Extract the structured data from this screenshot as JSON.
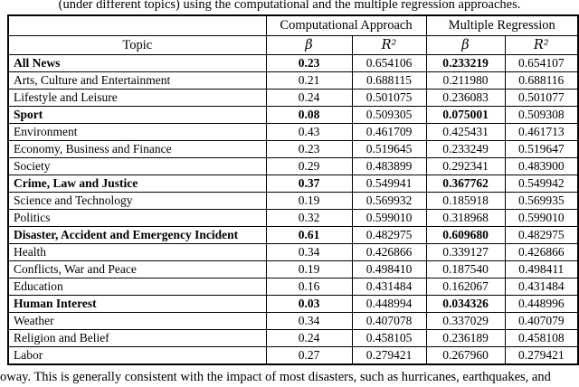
{
  "caption_top": "(under different topics) using the computational and the multiple regression approaches.",
  "table": {
    "group_headers": [
      "Computational Approach",
      "Multiple Regression"
    ],
    "col_headers": {
      "topic": "Topic",
      "beta": "β",
      "r2": "R²"
    },
    "rows": [
      {
        "topic": "All News",
        "bold": true,
        "ca_beta": "0.23",
        "ca_r2": "0.654106",
        "mr_beta": "0.233219",
        "mr_r2": "0.654107"
      },
      {
        "topic": "Arts, Culture and Entertainment",
        "bold": false,
        "ca_beta": "0.21",
        "ca_r2": "0.688115",
        "mr_beta": "0.211980",
        "mr_r2": "0.688116"
      },
      {
        "topic": "Lifestyle and Leisure",
        "bold": false,
        "ca_beta": "0.24",
        "ca_r2": "0.501075",
        "mr_beta": "0.236083",
        "mr_r2": "0.501077"
      },
      {
        "topic": "Sport",
        "bold": true,
        "ca_beta": "0.08",
        "ca_r2": "0.509305",
        "mr_beta": "0.075001",
        "mr_r2": "0.509308"
      },
      {
        "topic": "Environment",
        "bold": false,
        "ca_beta": "0.43",
        "ca_r2": "0.461709",
        "mr_beta": "0.425431",
        "mr_r2": "0.461713"
      },
      {
        "topic": "Economy, Business and Finance",
        "bold": false,
        "ca_beta": "0.23",
        "ca_r2": "0.519645",
        "mr_beta": "0.233249",
        "mr_r2": "0.519647"
      },
      {
        "topic": "Society",
        "bold": false,
        "ca_beta": "0.29",
        "ca_r2": "0.483899",
        "mr_beta": "0.292341",
        "mr_r2": "0.483900"
      },
      {
        "topic": "Crime, Law and Justice",
        "bold": true,
        "ca_beta": "0.37",
        "ca_r2": "0.549941",
        "mr_beta": "0.367762",
        "mr_r2": "0.549942"
      },
      {
        "topic": "Science and Technology",
        "bold": false,
        "ca_beta": "0.19",
        "ca_r2": "0.569932",
        "mr_beta": "0.185918",
        "mr_r2": "0.569935"
      },
      {
        "topic": "Politics",
        "bold": false,
        "ca_beta": "0.32",
        "ca_r2": "0.599010",
        "mr_beta": "0.318968",
        "mr_r2": "0.599010"
      },
      {
        "topic": "Disaster, Accident and Emergency Incident",
        "bold": true,
        "ca_beta": "0.61",
        "ca_r2": "0.482975",
        "mr_beta": "0.609680",
        "mr_r2": "0.482975"
      },
      {
        "topic": "Health",
        "bold": false,
        "ca_beta": "0.34",
        "ca_r2": "0.426866",
        "mr_beta": "0.339127",
        "mr_r2": "0.426866"
      },
      {
        "topic": "Conflicts, War and Peace",
        "bold": false,
        "ca_beta": "0.19",
        "ca_r2": "0.498410",
        "mr_beta": "0.187540",
        "mr_r2": "0.498411"
      },
      {
        "topic": "Education",
        "bold": false,
        "ca_beta": "0.16",
        "ca_r2": "0.431484",
        "mr_beta": "0.162067",
        "mr_r2": "0.431484"
      },
      {
        "topic": "Human Interest",
        "bold": true,
        "ca_beta": "0.03",
        "ca_r2": "0.448994",
        "mr_beta": "0.034326",
        "mr_r2": "0.448996"
      },
      {
        "topic": "Weather",
        "bold": false,
        "ca_beta": "0.34",
        "ca_r2": "0.407078",
        "mr_beta": "0.337029",
        "mr_r2": "0.407079"
      },
      {
        "topic": "Religion and Belief",
        "bold": false,
        "ca_beta": "0.24",
        "ca_r2": "0.458105",
        "mr_beta": "0.236189",
        "mr_r2": "0.458108"
      },
      {
        "topic": "Labor",
        "bold": false,
        "ca_beta": "0.27",
        "ca_r2": "0.279421",
        "mr_beta": "0.267960",
        "mr_r2": "0.279421"
      }
    ]
  },
  "footer_text": "oway. This is generally consistent with the impact of most disasters, such as hurricanes, earthquakes, and"
}
